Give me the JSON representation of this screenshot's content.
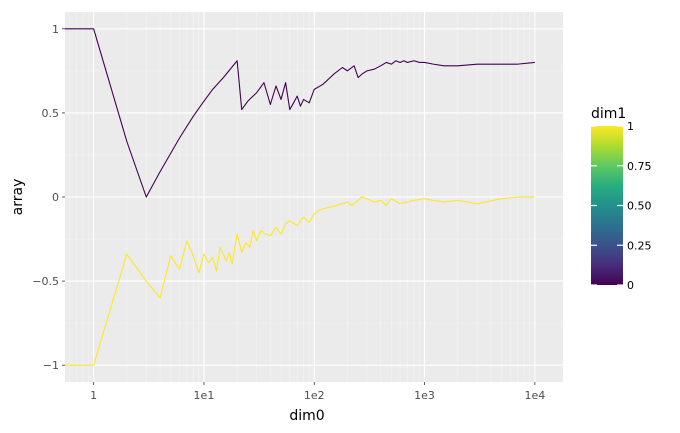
{
  "chart_data": {
    "type": "line",
    "xlabel": "dim0",
    "ylabel": "array",
    "x_scale": "log10",
    "xlim": [
      0.55,
      18000
    ],
    "ylim": [
      -1.1,
      1.1
    ],
    "x_ticks": [
      {
        "value": 1,
        "label": "1"
      },
      {
        "value": 10,
        "label": "1e1"
      },
      {
        "value": 100,
        "label": "1e2"
      },
      {
        "value": 1000,
        "label": "1e3"
      },
      {
        "value": 10000,
        "label": "1e4"
      }
    ],
    "y_ticks": [
      {
        "value": 1,
        "label": "1"
      },
      {
        "value": 0.5,
        "label": "0.5"
      },
      {
        "value": 0,
        "label": "0"
      },
      {
        "value": -0.5,
        "label": "−0.5"
      },
      {
        "value": -1,
        "label": "−1"
      }
    ],
    "grid": true,
    "background": "#ebebeb",
    "legend": {
      "title": "dim1",
      "type": "colorbar",
      "placement": "right",
      "colormap": "viridis",
      "range": [
        0,
        1
      ],
      "ticks": [
        {
          "value": 1,
          "label": "1"
        },
        {
          "value": 0.75,
          "label": "0.75"
        },
        {
          "value": 0.5,
          "label": "0.50"
        },
        {
          "value": 0.25,
          "label": "0.25"
        },
        {
          "value": 0,
          "label": "0"
        }
      ]
    },
    "series": [
      {
        "dim1": 0,
        "color": "#440154",
        "x": [
          0.55,
          1,
          2,
          3,
          4,
          5,
          6,
          7,
          8,
          10,
          12,
          15,
          20,
          22,
          25,
          30,
          35,
          40,
          45,
          50,
          55,
          60,
          65,
          70,
          75,
          80,
          90,
          100,
          120,
          150,
          180,
          200,
          230,
          250,
          270,
          300,
          350,
          400,
          450,
          500,
          550,
          600,
          650,
          700,
          800,
          900,
          1000,
          1200,
          1500,
          2000,
          3000,
          5000,
          7000,
          10000
        ],
        "y": [
          1,
          1,
          0.33,
          0.0,
          0.15,
          0.26,
          0.35,
          0.42,
          0.48,
          0.57,
          0.64,
          0.71,
          0.81,
          0.52,
          0.57,
          0.62,
          0.68,
          0.55,
          0.66,
          0.58,
          0.68,
          0.52,
          0.56,
          0.6,
          0.54,
          0.58,
          0.56,
          0.64,
          0.67,
          0.73,
          0.77,
          0.75,
          0.78,
          0.71,
          0.73,
          0.75,
          0.76,
          0.78,
          0.8,
          0.79,
          0.81,
          0.8,
          0.81,
          0.8,
          0.81,
          0.8,
          0.8,
          0.79,
          0.78,
          0.78,
          0.79,
          0.79,
          0.79,
          0.8
        ]
      },
      {
        "dim1": 1,
        "color": "#fde725",
        "x": [
          0.55,
          1,
          2,
          3,
          4,
          5,
          6,
          7,
          8,
          9,
          10,
          11,
          12,
          13,
          14,
          15,
          16,
          17,
          18,
          20,
          22,
          24,
          26,
          28,
          30,
          33,
          36,
          40,
          45,
          50,
          55,
          60,
          70,
          80,
          90,
          100,
          110,
          120,
          140,
          160,
          180,
          200,
          220,
          250,
          270,
          300,
          350,
          400,
          450,
          500,
          600,
          700,
          800,
          1000,
          1200,
          1500,
          2000,
          3000,
          5000,
          7000,
          10000
        ],
        "y": [
          -1,
          -1,
          -0.34,
          -0.5,
          -0.6,
          -0.35,
          -0.43,
          -0.26,
          -0.35,
          -0.45,
          -0.34,
          -0.39,
          -0.36,
          -0.44,
          -0.3,
          -0.34,
          -0.38,
          -0.33,
          -0.4,
          -0.22,
          -0.33,
          -0.27,
          -0.3,
          -0.2,
          -0.26,
          -0.2,
          -0.22,
          -0.23,
          -0.18,
          -0.22,
          -0.16,
          -0.14,
          -0.17,
          -0.12,
          -0.15,
          -0.1,
          -0.08,
          -0.07,
          -0.06,
          -0.05,
          -0.04,
          -0.03,
          -0.05,
          -0.02,
          0.0,
          -0.01,
          -0.03,
          -0.02,
          -0.05,
          -0.01,
          -0.04,
          -0.03,
          -0.02,
          -0.01,
          -0.02,
          -0.03,
          -0.02,
          -0.04,
          -0.01,
          0.0,
          0.0
        ]
      }
    ]
  }
}
